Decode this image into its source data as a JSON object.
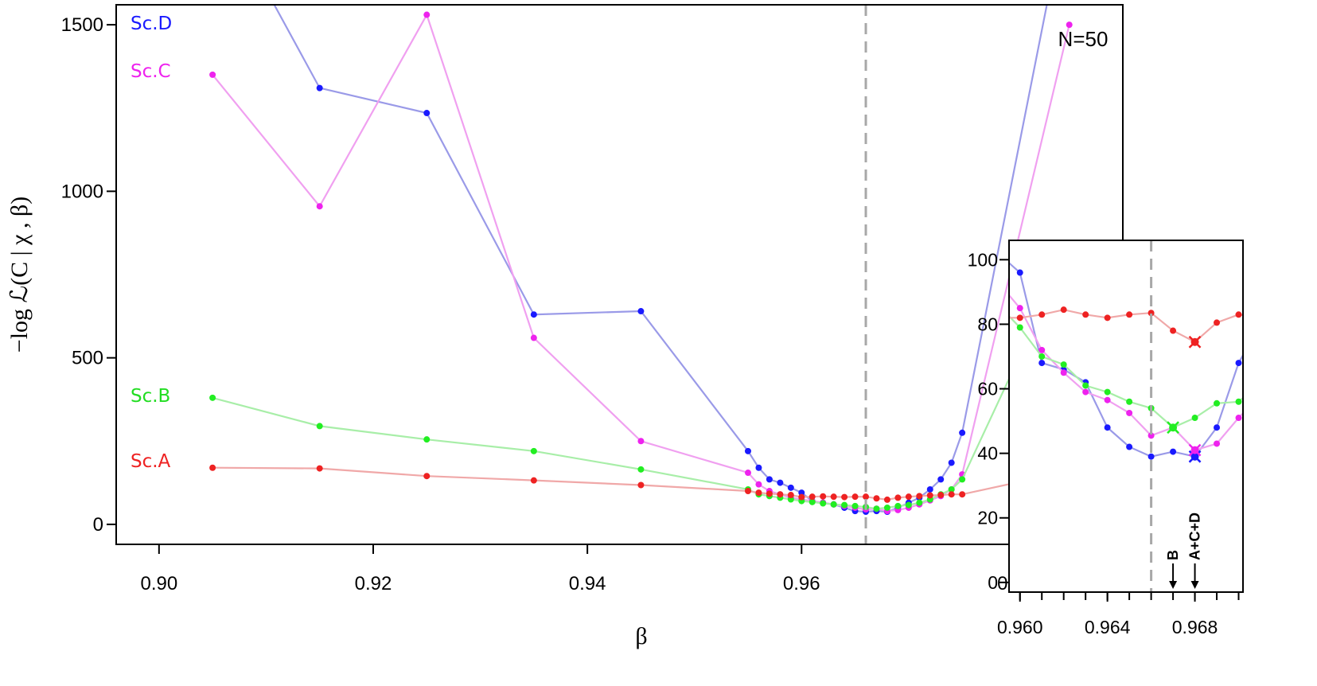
{
  "chart_data": [
    {
      "type": "line",
      "title": "",
      "xlabel": "β",
      "ylabel": "−log ℒ(C | χ , β)",
      "annotation": "N=50",
      "xlim": [
        0.896,
        0.99
      ],
      "ylim": [
        -60,
        1560
      ],
      "xticks": [
        0.9,
        0.92,
        0.94,
        0.96,
        0.98
      ],
      "xtick_labels": [
        "0.90",
        "0.92",
        "0.94",
        "0.96",
        "0.98"
      ],
      "yticks": [
        0,
        500,
        1000,
        1500
      ],
      "ytick_labels": [
        "0",
        "500",
        "1000",
        "1500"
      ],
      "vline": 0.966,
      "grid": false,
      "legend": "inline-left",
      "series": [
        {
          "name": "Sc.D",
          "color": "#1a1aff",
          "line_color": "#9a9ae8",
          "x": [
            0.905,
            0.915,
            0.925,
            0.935,
            0.945,
            0.955,
            0.956,
            0.957,
            0.958,
            0.959,
            0.96,
            0.961,
            0.962,
            0.963,
            0.964,
            0.965,
            0.966,
            0.967,
            0.968,
            0.969,
            0.97,
            0.971,
            0.972,
            0.973,
            0.974,
            0.975,
            0.985
          ],
          "y": [
            1900,
            1310,
            1235,
            630,
            640,
            220,
            170,
            135,
            125,
            110,
            95,
            70,
            65,
            60,
            50,
            40,
            38,
            40,
            38,
            50,
            65,
            80,
            105,
            135,
            185,
            275,
            1900
          ]
        },
        {
          "name": "Sc.C",
          "color": "#ee22ee",
          "line_color": "#f0a0f0",
          "x": [
            0.905,
            0.915,
            0.925,
            0.935,
            0.945,
            0.955,
            0.956,
            0.957,
            0.958,
            0.959,
            0.96,
            0.961,
            0.962,
            0.963,
            0.964,
            0.965,
            0.966,
            0.967,
            0.968,
            0.969,
            0.97,
            0.971,
            0.972,
            0.973,
            0.974,
            0.975,
            0.985
          ],
          "y": [
            1350,
            955,
            1530,
            560,
            250,
            155,
            120,
            100,
            90,
            80,
            75,
            70,
            65,
            60,
            55,
            50,
            45,
            47,
            40,
            43,
            50,
            60,
            72,
            85,
            105,
            150,
            1500
          ]
        },
        {
          "name": "Sc.B",
          "color": "#22ee22",
          "line_color": "#a8eea8",
          "x": [
            0.905,
            0.915,
            0.925,
            0.935,
            0.945,
            0.955,
            0.956,
            0.957,
            0.958,
            0.959,
            0.96,
            0.961,
            0.962,
            0.963,
            0.964,
            0.965,
            0.966,
            0.967,
            0.968,
            0.969,
            0.97,
            0.971,
            0.972,
            0.973,
            0.974,
            0.975,
            0.985
          ],
          "y": [
            380,
            295,
            255,
            220,
            165,
            105,
            90,
            85,
            80,
            75,
            70,
            67,
            63,
            60,
            58,
            55,
            52,
            47,
            50,
            55,
            58,
            65,
            75,
            90,
            105,
            135,
            825
          ]
        },
        {
          "name": "Sc.A",
          "color": "#ee2222",
          "line_color": "#f0a8a8",
          "x": [
            0.905,
            0.915,
            0.925,
            0.935,
            0.945,
            0.955,
            0.956,
            0.957,
            0.958,
            0.959,
            0.96,
            0.961,
            0.962,
            0.963,
            0.964,
            0.965,
            0.966,
            0.967,
            0.968,
            0.969,
            0.97,
            0.971,
            0.972,
            0.973,
            0.974,
            0.975,
            0.985
          ],
          "y": [
            170,
            168,
            145,
            132,
            118,
            100,
            95,
            92,
            90,
            88,
            82,
            83,
            84,
            83,
            82,
            83,
            83,
            78,
            74,
            80,
            83,
            85,
            87,
            88,
            90,
            90,
            160
          ]
        }
      ]
    },
    {
      "type": "line",
      "title": "",
      "xlim": [
        0.9595,
        0.9702
      ],
      "ylim": [
        -3,
        106
      ],
      "xticks": [
        0.96,
        0.964,
        0.968
      ],
      "xtick_labels": [
        "0.960",
        "0.964",
        "0.968"
      ],
      "yticks": [
        0,
        20,
        40,
        60,
        80,
        100
      ],
      "ytick_labels": [
        "0",
        "20",
        "40",
        "60",
        "80",
        "100"
      ],
      "vline": 0.966,
      "arrows": [
        {
          "x": 0.967,
          "label": "B"
        },
        {
          "x": 0.968,
          "label": "A+C+D"
        }
      ],
      "series": [
        {
          "name": "Sc.D",
          "color": "#1a1aff",
          "line_color": "#9a9ae8",
          "x": [
            0.959,
            0.96,
            0.961,
            0.962,
            0.963,
            0.964,
            0.965,
            0.966,
            0.967,
            0.968,
            0.969,
            0.97,
            0.971
          ],
          "y": [
            102,
            96,
            68,
            66,
            62,
            48,
            42,
            39,
            40.5,
            39,
            48,
            68,
            80
          ],
          "minimum_x": 0.968
        },
        {
          "name": "Sc.C",
          "color": "#ee22ee",
          "line_color": "#f0a0f0",
          "x": [
            0.959,
            0.96,
            0.961,
            0.962,
            0.963,
            0.964,
            0.965,
            0.966,
            0.967,
            0.968,
            0.969,
            0.97,
            0.971
          ],
          "y": [
            93,
            85,
            72,
            65,
            59,
            56.5,
            52.5,
            45.5,
            48,
            41,
            43,
            51,
            58
          ],
          "minimum_x": 0.968
        },
        {
          "name": "Sc.B",
          "color": "#22ee22",
          "line_color": "#a8eea8",
          "x": [
            0.959,
            0.96,
            0.961,
            0.962,
            0.963,
            0.964,
            0.965,
            0.966,
            0.967,
            0.968,
            0.969,
            0.97,
            0.971
          ],
          "y": [
            86,
            79,
            70,
            67.5,
            61,
            59,
            56,
            54,
            48,
            51,
            55.5,
            56,
            62
          ],
          "minimum_x": 0.967
        },
        {
          "name": "Sc.A",
          "color": "#ee2222",
          "line_color": "#f0a8a8",
          "x": [
            0.959,
            0.96,
            0.961,
            0.962,
            0.963,
            0.964,
            0.965,
            0.966,
            0.967,
            0.968,
            0.969,
            0.97,
            0.971
          ],
          "y": [
            82,
            82,
            83,
            84.5,
            83,
            82,
            83,
            83.5,
            78,
            74.5,
            80.5,
            83,
            82
          ],
          "minimum_x": 0.968
        }
      ]
    }
  ]
}
